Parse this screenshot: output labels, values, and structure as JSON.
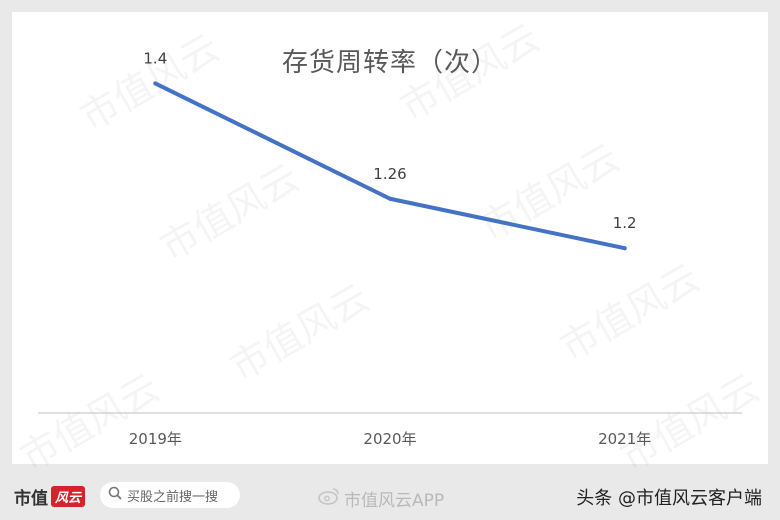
{
  "chart_data": {
    "type": "line",
    "title": "存货周转率（次）",
    "categories": [
      "2019年",
      "2020年",
      "2021年"
    ],
    "series": [
      {
        "values": [
          1.4,
          1.26,
          1.2
        ],
        "labels": [
          "1.4",
          "1.26",
          "1.2"
        ]
      }
    ],
    "ylim": [
      1.0,
      1.5
    ],
    "grid": false,
    "color": "#4472c4"
  },
  "watermark_text": "市值风云",
  "footer": {
    "brand_name": "市值",
    "brand_logo_text": "风云",
    "search_placeholder": "买股之前搜一搜",
    "weibo_text": "市值风云APP",
    "toutiao_text": "头条 @市值风云客户端"
  }
}
